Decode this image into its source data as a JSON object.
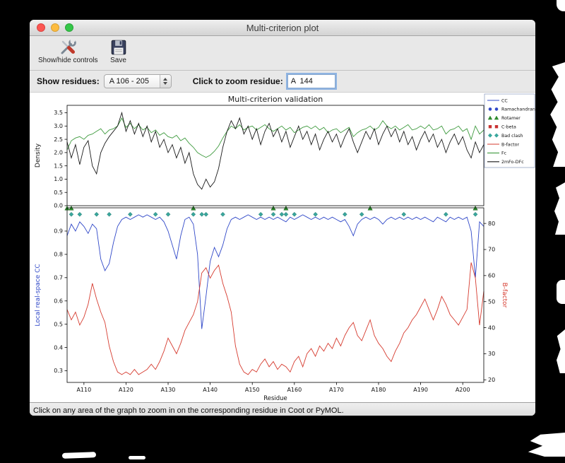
{
  "window": {
    "title": "Multi-criterion plot",
    "toolbar": {
      "show_hide_label": "Show/hide controls",
      "save_label": "Save"
    },
    "controls": {
      "show_residues_label": "Show residues:",
      "residue_range_value": "A 106 - 205",
      "zoom_residue_label": "Click to zoom residue:",
      "zoom_residue_value": "A  144"
    },
    "status_text": "Click on any area of the graph to zoom in on the corresponding residue in Coot or PyMOL."
  },
  "chart_data": {
    "type": "line",
    "title": "Multi-criterion validation",
    "xlabel": "Residue",
    "xlim": [
      106,
      205
    ],
    "x_ticks": [
      {
        "label": "A110",
        "residue": 110
      },
      {
        "label": "A120",
        "residue": 120
      },
      {
        "label": "A130",
        "residue": 130
      },
      {
        "label": "A140",
        "residue": 140
      },
      {
        "label": "A150",
        "residue": 150
      },
      {
        "label": "A160",
        "residue": 160
      },
      {
        "label": "A170",
        "residue": 170
      },
      {
        "label": "A180",
        "residue": 180
      },
      {
        "label": "A190",
        "residue": 190
      },
      {
        "label": "A200",
        "residue": 200
      }
    ],
    "colors": {
      "cc": "#3048c8",
      "bfactor": "#d63b2f",
      "fc": "#3f9b3f",
      "two_mfo_dfc": "#1a1a1a"
    },
    "top": {
      "ylabel": "Density",
      "ylim": [
        0,
        3.78
      ],
      "yticks": [
        0.0,
        0.5,
        1.0,
        1.5,
        2.0,
        2.5,
        3.0,
        3.5
      ],
      "series": [
        {
          "name": "Fc",
          "color": "#3f9b3f",
          "values": [
            2.1,
            2.45,
            2.55,
            2.6,
            2.5,
            2.65,
            2.7,
            2.8,
            2.9,
            2.7,
            2.85,
            2.9,
            3.0,
            3.3,
            2.95,
            3.1,
            2.9,
            3.05,
            2.85,
            2.95,
            2.75,
            2.85,
            2.65,
            2.75,
            2.6,
            2.55,
            2.65,
            2.45,
            2.55,
            2.35,
            2.2,
            2.0,
            1.9,
            1.82,
            1.9,
            2.05,
            2.25,
            2.55,
            2.8,
            3.0,
            2.9,
            3.05,
            2.85,
            2.95,
            3.0,
            2.85,
            2.95,
            3.05,
            2.9,
            2.8,
            2.9,
            3.0,
            2.85,
            2.95,
            2.75,
            2.85,
            2.95,
            3.0,
            2.9,
            3.0,
            2.85,
            2.95,
            2.75,
            2.85,
            2.9,
            2.75,
            2.85,
            2.95,
            2.6,
            2.75,
            2.85,
            2.9,
            3.0,
            2.85,
            2.95,
            3.2,
            3.0,
            2.9,
            3.0,
            2.85,
            2.95,
            3.05,
            2.85,
            2.9,
            3.0,
            2.9,
            3.05,
            2.85,
            2.9,
            3.0,
            2.7,
            2.85,
            2.9,
            3.0,
            2.8,
            2.9,
            2.5,
            3.0,
            2.7,
            2.85
          ]
        },
        {
          "name": "2mFo-DFc",
          "color": "#1a1a1a",
          "values": [
            2.4,
            1.8,
            2.3,
            1.55,
            2.2,
            2.45,
            1.5,
            1.2,
            2.0,
            2.35,
            2.6,
            2.8,
            3.0,
            3.5,
            2.8,
            3.2,
            2.7,
            3.1,
            2.6,
            3.0,
            2.4,
            2.8,
            2.2,
            2.5,
            2.0,
            2.3,
            1.8,
            2.2,
            1.6,
            2.0,
            1.2,
            0.8,
            0.62,
            1.0,
            0.7,
            0.9,
            1.4,
            2.2,
            2.8,
            3.2,
            2.9,
            3.3,
            2.7,
            3.0,
            2.5,
            2.9,
            2.3,
            2.8,
            3.1,
            2.6,
            2.9,
            2.4,
            2.8,
            2.2,
            2.6,
            3.0,
            2.5,
            2.8,
            2.3,
            2.7,
            2.1,
            2.5,
            2.8,
            2.4,
            2.7,
            2.2,
            2.6,
            2.9,
            2.4,
            2.0,
            2.4,
            2.8,
            2.5,
            2.9,
            2.3,
            2.7,
            3.0,
            2.6,
            2.9,
            2.4,
            2.8,
            2.3,
            2.6,
            2.1,
            2.5,
            2.8,
            2.4,
            2.7,
            2.2,
            2.5,
            2.0,
            2.4,
            2.7,
            2.3,
            2.6,
            2.1,
            1.8,
            2.4,
            2.0,
            2.3
          ]
        }
      ]
    },
    "bottom": {
      "ylabel_left": "Local real-space CC",
      "ylabel_right": "B-factor",
      "ylim_left": [
        0.25,
        1.0
      ],
      "yticks_left": [
        0.9,
        0.8,
        0.7,
        0.6,
        0.5,
        0.4,
        0.3
      ],
      "ylim_right": [
        19,
        86
      ],
      "yticks_right": [
        80,
        70,
        60,
        50,
        40,
        30,
        20
      ],
      "series": [
        {
          "name": "CC",
          "axis": "left",
          "color": "#3048c8",
          "values": [
            0.88,
            0.93,
            0.9,
            0.94,
            0.92,
            0.89,
            0.93,
            0.91,
            0.78,
            0.73,
            0.76,
            0.85,
            0.92,
            0.95,
            0.96,
            0.95,
            0.96,
            0.97,
            0.96,
            0.97,
            0.96,
            0.95,
            0.96,
            0.94,
            0.9,
            0.84,
            0.78,
            0.88,
            0.95,
            0.96,
            0.93,
            0.8,
            0.48,
            0.62,
            0.77,
            0.83,
            0.79,
            0.84,
            0.91,
            0.95,
            0.96,
            0.95,
            0.96,
            0.97,
            0.96,
            0.95,
            0.96,
            0.95,
            0.96,
            0.95,
            0.96,
            0.95,
            0.94,
            0.96,
            0.95,
            0.96,
            0.97,
            0.96,
            0.95,
            0.96,
            0.95,
            0.96,
            0.95,
            0.96,
            0.95,
            0.94,
            0.95,
            0.92,
            0.88,
            0.93,
            0.95,
            0.96,
            0.95,
            0.96,
            0.95,
            0.93,
            0.95,
            0.96,
            0.95,
            0.96,
            0.95,
            0.96,
            0.95,
            0.96,
            0.95,
            0.96,
            0.95,
            0.94,
            0.96,
            0.95,
            0.94,
            0.96,
            0.95,
            0.96,
            0.95,
            0.96,
            0.9,
            0.7,
            0.94,
            0.92
          ]
        },
        {
          "name": "B-factor",
          "axis": "right",
          "color": "#d63b2f",
          "values": [
            47,
            43,
            46,
            41,
            44,
            49,
            57,
            51,
            46,
            42,
            33,
            27,
            23,
            22,
            23,
            22,
            24,
            22,
            23,
            24,
            26,
            24,
            27,
            31,
            36,
            33,
            30,
            34,
            39,
            42,
            45,
            50,
            61,
            63,
            59,
            62,
            64,
            57,
            52,
            46,
            33,
            26,
            23,
            22,
            24,
            23,
            26,
            28,
            25,
            27,
            24,
            26,
            25,
            23,
            27,
            29,
            25,
            30,
            32,
            29,
            33,
            31,
            34,
            32,
            36,
            33,
            37,
            40,
            42,
            37,
            35,
            39,
            43,
            37,
            34,
            32,
            29,
            27,
            31,
            34,
            38,
            40,
            43,
            45,
            48,
            51,
            47,
            43,
            47,
            52,
            49,
            45,
            43,
            41,
            44,
            47,
            65,
            59,
            41,
            54
          ]
        }
      ],
      "markers": {
        "bad_clash": {
          "y": 0.972,
          "color": "#3aa79d",
          "residues": [
            107,
            109,
            113,
            116,
            121,
            127,
            130,
            136,
            138,
            139,
            143,
            152,
            155,
            157,
            158,
            160,
            165,
            172,
            176,
            186,
            196,
            203
          ]
        },
        "rotamer": {
          "y": 0.998,
          "color": "#2e8b2e",
          "residues": [
            106,
            107,
            136,
            155,
            158,
            178,
            203
          ]
        },
        "ramachandran": {
          "color": "#3048c8",
          "residues": []
        },
        "c_beta": {
          "color": "#c83232",
          "residues": []
        }
      }
    },
    "legend": [
      {
        "label": "CC",
        "type": "line",
        "color": "#3048c8"
      },
      {
        "label": "Ramachandran",
        "type": "circle",
        "color": "#3048c8"
      },
      {
        "label": "Rotamer",
        "type": "triangle",
        "color": "#2e8b2e"
      },
      {
        "label": "C-beta",
        "type": "square",
        "color": "#c83232"
      },
      {
        "label": "Bad clash",
        "type": "diamond",
        "color": "#3aa79d"
      },
      {
        "label": "B-factor",
        "type": "line",
        "color": "#d63b2f"
      },
      {
        "label": "Fc",
        "type": "line",
        "color": "#3f9b3f"
      },
      {
        "label": "2mFo-DFc",
        "type": "line",
        "color": "#1a1a1a"
      }
    ]
  }
}
